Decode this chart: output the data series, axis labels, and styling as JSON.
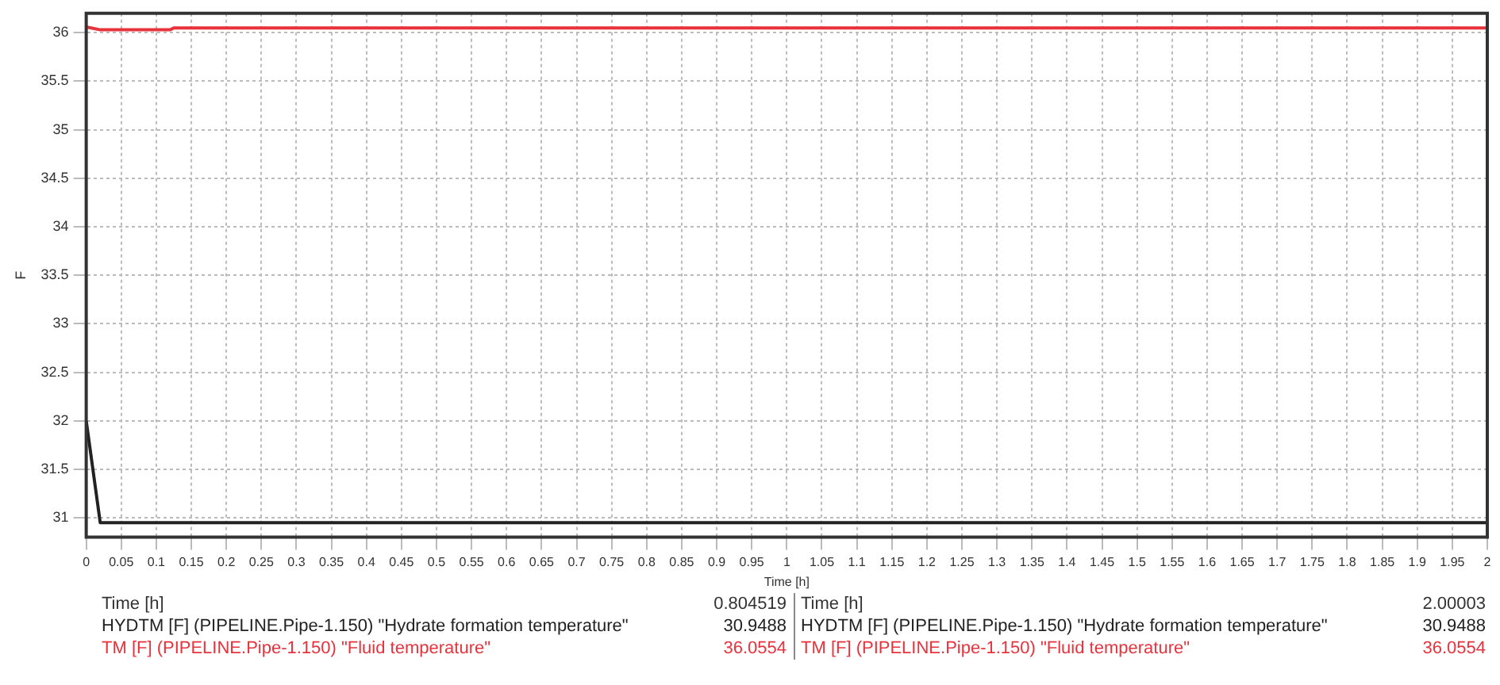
{
  "chart_data": {
    "type": "line",
    "xlabel": "Time [h]",
    "ylabel": "F",
    "series": [
      {
        "name": "HYDTM [F] (PIPELINE.Pipe-1.150) \"Hydrate formation temperature\"",
        "color": "#222222",
        "x": [
          0,
          0.02,
          2
        ],
        "values": [
          32,
          30.95,
          30.95
        ]
      },
      {
        "name": "TM [F] (PIPELINE.Pipe-1.150) \"Fluid temperature\"",
        "color": "#e8323c",
        "x": [
          0,
          0.02,
          0.12,
          0.125,
          2
        ],
        "values": [
          36.06,
          36.03,
          36.03,
          36.05,
          36.05
        ]
      }
    ],
    "xlim": [
      0,
      2
    ],
    "xticks": [
      0,
      0.05,
      0.1,
      0.15,
      0.2,
      0.25,
      0.3,
      0.35,
      0.4,
      0.45,
      0.5,
      0.55,
      0.6,
      0.65,
      0.7,
      0.75,
      0.8,
      0.85,
      0.9,
      0.95,
      1,
      1.05,
      1.1,
      1.15,
      1.2,
      1.25,
      1.3,
      1.35,
      1.4,
      1.45,
      1.5,
      1.55,
      1.6,
      1.65,
      1.7,
      1.75,
      1.8,
      1.85,
      1.9,
      1.95,
      2
    ],
    "ylim": [
      30.8,
      36.2
    ],
    "yticks": [
      31,
      31.5,
      32,
      32.5,
      33,
      33.5,
      34,
      34.5,
      35,
      35.5,
      36
    ],
    "grid": true,
    "legend": "bottom",
    "marker": "none",
    "line_style": "solid",
    "annotations": [
      "0.804519",
      "30.9488",
      "36.0554",
      "2.00003",
      "30.9488",
      "36.0554"
    ]
  }
}
